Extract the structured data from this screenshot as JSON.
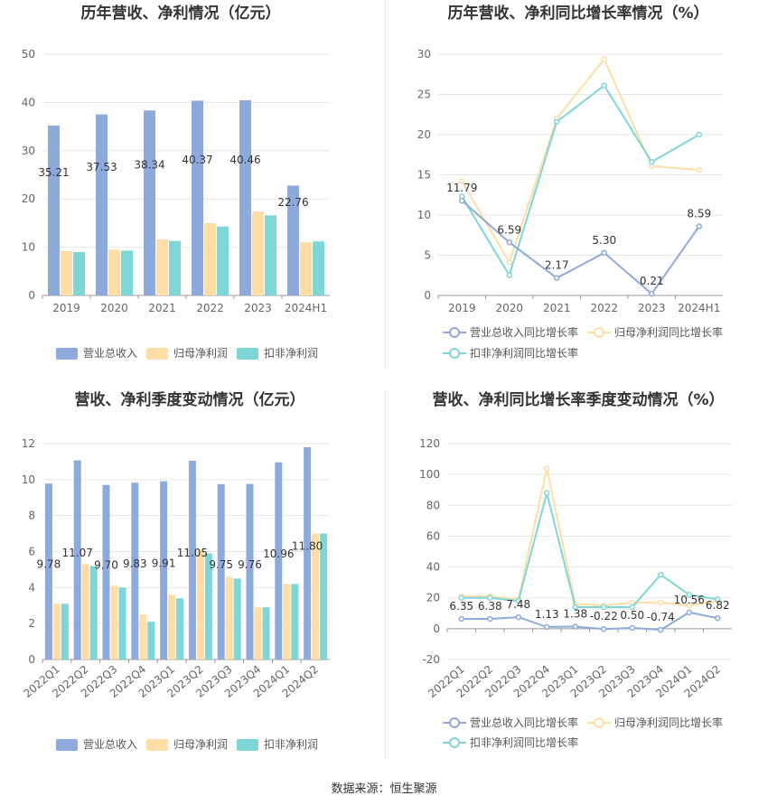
{
  "colors": {
    "revenue": "#8EAADC",
    "net_profit": "#FFDDA6",
    "deducted_profit": "#7FD6D6",
    "grid": "#E6E6E6",
    "axis": "#999999"
  },
  "footer": {
    "source": "数据来源：恒生聚源"
  },
  "chart_data": [
    {
      "id": "annual_bar",
      "type": "bar",
      "title": "历年营收、净利情况（亿元）",
      "categories": [
        "2019",
        "2020",
        "2021",
        "2022",
        "2023",
        "2024H1"
      ],
      "ylim": [
        0,
        50
      ],
      "yticks": [
        0,
        10,
        20,
        30,
        40,
        50
      ],
      "legend_position": "bottom",
      "series": [
        {
          "name": "营业总收入",
          "color_key": "revenue",
          "values": [
            35.21,
            37.53,
            38.34,
            40.37,
            40.46,
            22.76
          ],
          "labels": [
            "35.21",
            "37.53",
            "38.34",
            "40.37",
            "40.46",
            "22.76"
          ]
        },
        {
          "name": "归母净利润",
          "color_key": "net_profit",
          "values": [
            9.2,
            9.5,
            11.6,
            15.0,
            17.4,
            11.0
          ]
        },
        {
          "name": "扣非净利润",
          "color_key": "deducted_profit",
          "values": [
            9.0,
            9.3,
            11.3,
            14.3,
            16.6,
            11.2
          ]
        }
      ]
    },
    {
      "id": "annual_growth",
      "type": "line",
      "title": "历年营收、净利同比增长率情况（%）",
      "categories": [
        "2019",
        "2020",
        "2021",
        "2022",
        "2023",
        "2024H1"
      ],
      "ylim": [
        0,
        30
      ],
      "yticks": [
        0,
        5,
        10,
        15,
        20,
        25,
        30
      ],
      "legend_position": "bottom",
      "series": [
        {
          "name": "营业总收入同比增长率",
          "color_key": "revenue",
          "values": [
            11.79,
            6.59,
            2.17,
            5.3,
            0.21,
            8.59
          ],
          "labels": [
            "11.79",
            "6.59",
            "2.17",
            "5.30",
            "0.21",
            "8.59"
          ]
        },
        {
          "name": "归母净利润同比增长率",
          "color_key": "net_profit",
          "values": [
            14.2,
            4.1,
            22.0,
            29.4,
            16.1,
            15.6
          ]
        },
        {
          "name": "扣非净利润同比增长率",
          "color_key": "deducted_profit",
          "values": [
            12.3,
            2.5,
            21.6,
            26.1,
            16.6,
            20.0
          ]
        }
      ]
    },
    {
      "id": "quarterly_bar",
      "type": "bar",
      "title": "营收、净利季度变动情况（亿元）",
      "categories": [
        "2022Q1",
        "2022Q2",
        "2022Q3",
        "2022Q4",
        "2023Q1",
        "2023Q2",
        "2023Q3",
        "2023Q4",
        "2024Q1",
        "2024Q2"
      ],
      "ylim": [
        0,
        12
      ],
      "yticks": [
        0,
        2,
        4,
        6,
        8,
        10,
        12
      ],
      "legend_position": "bottom",
      "series": [
        {
          "name": "营业总收入",
          "color_key": "revenue",
          "values": [
            9.78,
            11.07,
            9.7,
            9.83,
            9.91,
            11.05,
            9.75,
            9.76,
            10.96,
            11.8
          ],
          "labels": [
            "9.78",
            "11.07",
            "9.70",
            "9.83",
            "9.91",
            "11.05",
            "9.75",
            "9.76",
            "10.96",
            "11.80"
          ]
        },
        {
          "name": "归母净利润",
          "color_key": "net_profit",
          "values": [
            3.1,
            5.3,
            4.1,
            2.5,
            3.6,
            6.1,
            4.6,
            2.9,
            4.2,
            7.0
          ]
        },
        {
          "name": "扣非净利润",
          "color_key": "deducted_profit",
          "values": [
            3.1,
            5.2,
            4.0,
            2.1,
            3.4,
            5.9,
            4.5,
            2.9,
            4.2,
            7.0
          ]
        }
      ]
    },
    {
      "id": "quarterly_growth",
      "type": "line",
      "title": "营收、净利同比增长率季度变动情况（%）",
      "categories": [
        "2022Q1",
        "2022Q2",
        "2022Q3",
        "2022Q4",
        "2023Q1",
        "2023Q2",
        "2023Q3",
        "2023Q4",
        "2024Q1",
        "2024Q2"
      ],
      "ylim": [
        -20,
        120
      ],
      "yticks": [
        -20,
        0,
        20,
        40,
        60,
        80,
        100,
        120
      ],
      "legend_position": "bottom",
      "series": [
        {
          "name": "营业总收入同比增长率",
          "color_key": "revenue",
          "values": [
            6.35,
            6.38,
            7.48,
            1.13,
            1.38,
            -0.22,
            0.5,
            -0.74,
            10.56,
            6.82
          ],
          "labels": [
            "6.35",
            "6.38",
            "7.48",
            "1.13",
            "1.38",
            "-0.22",
            "0.50",
            "-0.74",
            "10.56",
            "6.82"
          ]
        },
        {
          "name": "归母净利润同比增长率",
          "color_key": "net_profit",
          "values": [
            21,
            21,
            19,
            104,
            16,
            15,
            17,
            17,
            15,
            18
          ]
        },
        {
          "name": "扣非净利润同比增长率",
          "color_key": "deducted_profit",
          "values": [
            20,
            20,
            18,
            88,
            14,
            14,
            14,
            35,
            22,
            19
          ]
        }
      ]
    }
  ]
}
